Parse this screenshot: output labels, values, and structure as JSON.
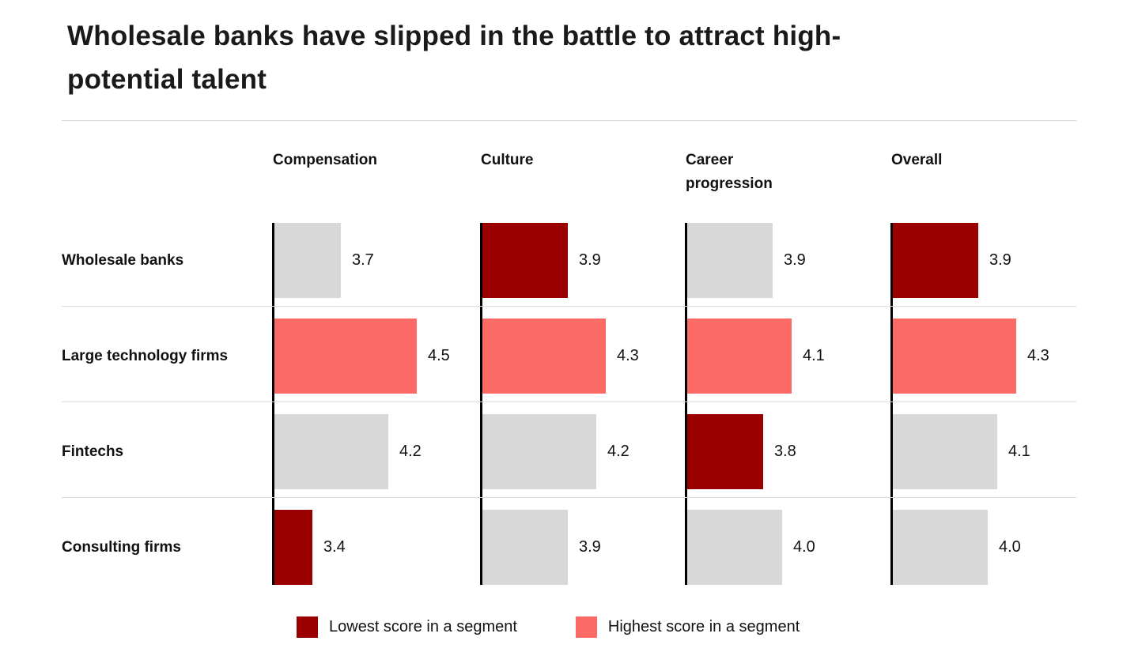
{
  "title_lines": [
    "Wholesale banks have slipped in the battle to attract high-",
    "potential talent"
  ],
  "chart_data": {
    "type": "bar",
    "orientation": "horizontal",
    "title": "Wholesale banks have slipped in the battle to attract high-potential talent",
    "columns": [
      "Compensation",
      "Culture",
      "Career progression",
      "Overall"
    ],
    "value_axis": {
      "min": 3.0,
      "max": 4.5
    },
    "grid": "horizontal-dividers-between-rows",
    "rows": [
      {
        "label": "Wholesale banks",
        "cells": [
          {
            "value": "3.7",
            "type": "neutral"
          },
          {
            "value": "3.9",
            "type": "lowest"
          },
          {
            "value": "3.9",
            "type": "neutral"
          },
          {
            "value": "3.9",
            "type": "lowest"
          }
        ]
      },
      {
        "label": "Large technology firms",
        "cells": [
          {
            "value": "4.5",
            "type": "highest"
          },
          {
            "value": "4.3",
            "type": "highest"
          },
          {
            "value": "4.1",
            "type": "highest"
          },
          {
            "value": "4.3",
            "type": "highest"
          }
        ]
      },
      {
        "label": "Fintechs",
        "cells": [
          {
            "value": "4.2",
            "type": "neutral"
          },
          {
            "value": "4.2",
            "type": "neutral"
          },
          {
            "value": "3.8",
            "type": "lowest"
          },
          {
            "value": "4.1",
            "type": "neutral"
          }
        ]
      },
      {
        "label": "Consulting firms",
        "cells": [
          {
            "value": "3.4",
            "type": "lowest"
          },
          {
            "value": "3.9",
            "type": "neutral"
          },
          {
            "value": "4.0",
            "type": "neutral"
          },
          {
            "value": "4.0",
            "type": "neutral"
          }
        ]
      }
    ],
    "legend": [
      {
        "label": "Lowest score in a segment",
        "type": "lowest"
      },
      {
        "label": "Highest score in a segment",
        "type": "highest"
      }
    ],
    "colors": {
      "lowest": "#9B0000",
      "highest": "#FB6A65",
      "neutral": "#D8D8D8",
      "axis": "#000000",
      "gridline": "#DBDBDB"
    },
    "legend_position": "bottom"
  }
}
